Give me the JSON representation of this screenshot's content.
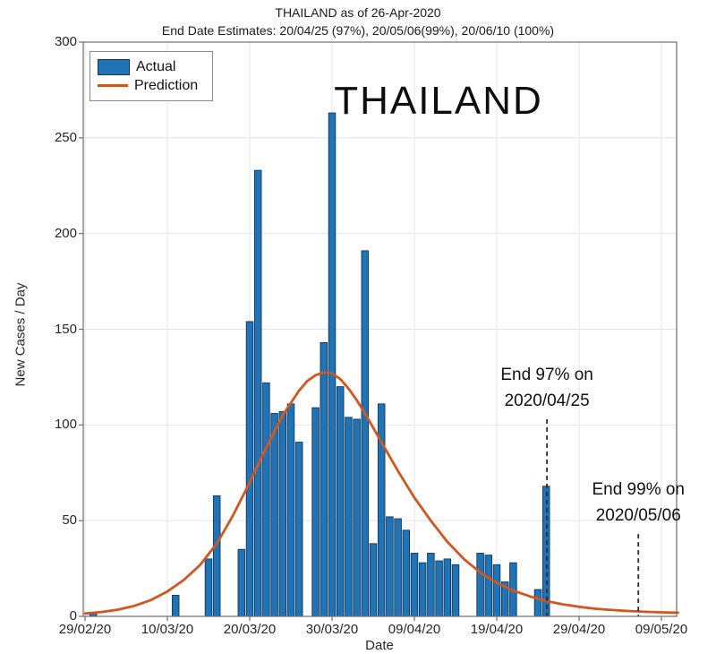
{
  "chart_data": {
    "type": "bar",
    "title": "THAILAND as of 26-Apr-2020",
    "subtitle": "End Date Estimates: 20/04/25 (97%), 20/05/06(99%), 20/06/10 (100%)",
    "inner_label": "THAILAND",
    "xlabel": "Date",
    "ylabel": "New Cases / Day",
    "ylim": [
      0,
      300
    ],
    "yticks": [
      0,
      50,
      100,
      150,
      200,
      250,
      300
    ],
    "xticks": [
      {
        "label": "29/02/20",
        "day": 0
      },
      {
        "label": "10/03/20",
        "day": 10
      },
      {
        "label": "20/03/20",
        "day": 20
      },
      {
        "label": "30/03/20",
        "day": 30
      },
      {
        "label": "09/04/20",
        "day": 40
      },
      {
        "label": "19/04/20",
        "day": 50
      },
      {
        "label": "29/04/20",
        "day": 60
      },
      {
        "label": "09/05/20",
        "day": 70
      }
    ],
    "grid": true,
    "legend": {
      "position": "top-left",
      "items": [
        {
          "label": "Actual",
          "swatch": "patch",
          "color": "#2074b6"
        },
        {
          "label": "Prediction",
          "swatch": "line",
          "color": "#d2571e"
        }
      ]
    },
    "bars": [
      {
        "date": "01/03/20",
        "day": 1,
        "value": 2
      },
      {
        "date": "11/03/20",
        "day": 11,
        "value": 11
      },
      {
        "date": "15/03/20",
        "day": 15,
        "value": 30
      },
      {
        "date": "16/03/20",
        "day": 16,
        "value": 63
      },
      {
        "date": "19/03/20",
        "day": 19,
        "value": 35
      },
      {
        "date": "20/03/20",
        "day": 20,
        "value": 154
      },
      {
        "date": "21/03/20",
        "day": 21,
        "value": 233
      },
      {
        "date": "22/03/20",
        "day": 22,
        "value": 122
      },
      {
        "date": "23/03/20",
        "day": 23,
        "value": 106
      },
      {
        "date": "24/03/20",
        "day": 24,
        "value": 107
      },
      {
        "date": "25/03/20",
        "day": 25,
        "value": 111
      },
      {
        "date": "26/03/20",
        "day": 26,
        "value": 91
      },
      {
        "date": "28/03/20",
        "day": 28,
        "value": 109
      },
      {
        "date": "29/03/20",
        "day": 29,
        "value": 143
      },
      {
        "date": "30/03/20",
        "day": 30,
        "value": 263
      },
      {
        "date": "31/03/20",
        "day": 31,
        "value": 120
      },
      {
        "date": "01/04/20",
        "day": 32,
        "value": 104
      },
      {
        "date": "02/04/20",
        "day": 33,
        "value": 103
      },
      {
        "date": "03/04/20",
        "day": 34,
        "value": 191
      },
      {
        "date": "04/04/20",
        "day": 35,
        "value": 38
      },
      {
        "date": "05/04/20",
        "day": 36,
        "value": 111
      },
      {
        "date": "06/04/20",
        "day": 37,
        "value": 52
      },
      {
        "date": "07/04/20",
        "day": 38,
        "value": 51
      },
      {
        "date": "08/04/20",
        "day": 39,
        "value": 45
      },
      {
        "date": "09/04/20",
        "day": 40,
        "value": 33
      },
      {
        "date": "10/04/20",
        "day": 41,
        "value": 28
      },
      {
        "date": "11/04/20",
        "day": 42,
        "value": 33
      },
      {
        "date": "12/04/20",
        "day": 43,
        "value": 29
      },
      {
        "date": "13/04/20",
        "day": 44,
        "value": 30
      },
      {
        "date": "14/04/20",
        "day": 45,
        "value": 27
      },
      {
        "date": "17/04/20",
        "day": 48,
        "value": 33
      },
      {
        "date": "18/04/20",
        "day": 49,
        "value": 32
      },
      {
        "date": "19/04/20",
        "day": 50,
        "value": 27
      },
      {
        "date": "20/04/20",
        "day": 51,
        "value": 18
      },
      {
        "date": "21/04/20",
        "day": 52,
        "value": 28
      },
      {
        "date": "24/04/20",
        "day": 55,
        "value": 14
      },
      {
        "date": "25/04/20",
        "day": 56,
        "value": 68
      }
    ],
    "prediction": {
      "name": "Prediction",
      "samples": [
        [
          0,
          1.5
        ],
        [
          2,
          2.3
        ],
        [
          4,
          3.5
        ],
        [
          6,
          5.5
        ],
        [
          8,
          8.5
        ],
        [
          10,
          13
        ],
        [
          12,
          19
        ],
        [
          14,
          27
        ],
        [
          16,
          38
        ],
        [
          18,
          53
        ],
        [
          20,
          70
        ],
        [
          22,
          88
        ],
        [
          24,
          105
        ],
        [
          26,
          118
        ],
        [
          27,
          123
        ],
        [
          28,
          126
        ],
        [
          29,
          127.5
        ],
        [
          30,
          127
        ],
        [
          31,
          124
        ],
        [
          32,
          119
        ],
        [
          33,
          113
        ],
        [
          34,
          106
        ],
        [
          36,
          91
        ],
        [
          38,
          76
        ],
        [
          40,
          62
        ],
        [
          42,
          50
        ],
        [
          44,
          39
        ],
        [
          46,
          30
        ],
        [
          48,
          23
        ],
        [
          50,
          17.5
        ],
        [
          52,
          13.5
        ],
        [
          54,
          10.5
        ],
        [
          56,
          8
        ],
        [
          58,
          6.3
        ],
        [
          60,
          5
        ],
        [
          62,
          4
        ],
        [
          64,
          3.3
        ],
        [
          66,
          2.8
        ],
        [
          68,
          2.4
        ],
        [
          70,
          2.1
        ],
        [
          72,
          1.9
        ]
      ]
    },
    "annotations": [
      {
        "line1": "End 97% on",
        "line2": "2020/04/25",
        "day": 56.1,
        "line_top_value": 103
      },
      {
        "line1": "End 99% on",
        "line2": "2020/05/06",
        "day": 67.2,
        "line_top_value": 43
      }
    ],
    "end_date_estimates": [
      {
        "date": "20/04/25",
        "percent": "97%"
      },
      {
        "date": "20/05/06",
        "percent": "99%"
      },
      {
        "date": "20/06/10",
        "percent": "100%"
      }
    ]
  },
  "colors": {
    "bar_fill": "#2074b6",
    "bar_edge": "#10375c",
    "prediction_line": "#d2571e",
    "dashed_marker": "#2b2b2b",
    "grid": "#e4e4e4",
    "frame": "#6e6e6e",
    "text": "#262626"
  }
}
